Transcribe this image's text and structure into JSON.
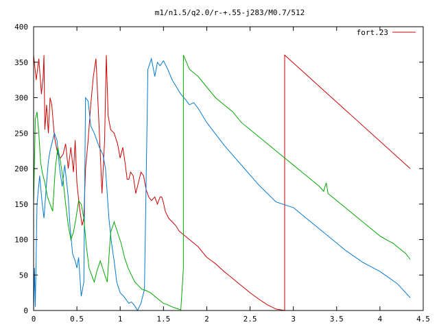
{
  "chart_data": {
    "type": "line",
    "title": "m1/n1.5/q2.0/r-+.55-j283/M0.7/512",
    "xlim": [
      0,
      4.5
    ],
    "ylim": [
      0,
      400
    ],
    "x_ticks": [
      "0",
      "0.5",
      "1",
      "1.5",
      "2",
      "2.5",
      "3",
      "3.5",
      "4",
      "4.5"
    ],
    "y_ticks": [
      "0",
      "50",
      "100",
      "150",
      "200",
      "250",
      "300",
      "350",
      "400"
    ],
    "grid": false,
    "legend": {
      "position": "top-right",
      "label": "fort.23",
      "color": "#cc0000"
    },
    "series": [
      {
        "name": "fort.23",
        "color": "#cc0000",
        "x": [
          0.0,
          0.03,
          0.06,
          0.09,
          0.11,
          0.12,
          0.13,
          0.15,
          0.17,
          0.19,
          0.21,
          0.24,
          0.28,
          0.31,
          0.34,
          0.37,
          0.4,
          0.43,
          0.46,
          0.48,
          0.5,
          0.53,
          0.56,
          0.58,
          0.6,
          0.63,
          0.66,
          0.69,
          0.72,
          0.76,
          0.79,
          0.82,
          0.84,
          0.86,
          0.89,
          0.93,
          0.97,
          1.0,
          1.03,
          1.06,
          1.08,
          1.1,
          1.12,
          1.15,
          1.18,
          1.21,
          1.24,
          1.27,
          1.3,
          1.33,
          1.36,
          1.4,
          1.43,
          1.46,
          1.48,
          1.5,
          1.52,
          1.54,
          1.56,
          1.6,
          1.64,
          1.68,
          1.72,
          1.76,
          1.8,
          1.9,
          2.0,
          2.1,
          2.2,
          2.3,
          2.4,
          2.5,
          2.6,
          2.7,
          2.8,
          2.9,
          2.9,
          4.35
        ],
        "y": [
          360,
          325,
          355,
          305,
          330,
          360,
          255,
          290,
          250,
          300,
          290,
          245,
          220,
          215,
          220,
          235,
          200,
          230,
          195,
          240,
          180,
          145,
          120,
          130,
          200,
          240,
          290,
          330,
          355,
          250,
          165,
          240,
          360,
          275,
          255,
          250,
          235,
          215,
          230,
          205,
          185,
          185,
          195,
          190,
          165,
          180,
          195,
          190,
          170,
          160,
          155,
          160,
          150,
          160,
          160,
          152,
          140,
          135,
          130,
          125,
          120,
          112,
          108,
          104,
          100,
          90,
          75,
          66,
          55,
          45,
          35,
          25,
          16,
          8,
          2,
          0,
          360,
          200
        ]
      },
      {
        "name": "",
        "color": "#0078d0",
        "x": [
          0.0,
          0.01,
          0.02,
          0.04,
          0.07,
          0.1,
          0.12,
          0.15,
          0.17,
          0.19,
          0.21,
          0.24,
          0.27,
          0.3,
          0.33,
          0.36,
          0.4,
          0.42,
          0.45,
          0.48,
          0.5,
          0.52,
          0.55,
          0.58,
          0.6,
          0.63,
          0.66,
          0.7,
          0.73,
          0.76,
          0.8,
          0.83,
          0.87,
          0.9,
          0.93,
          0.96,
          1.0,
          1.04,
          1.07,
          1.1,
          1.13,
          1.16,
          1.2,
          1.24,
          1.28,
          1.32,
          1.36,
          1.4,
          1.43,
          1.46,
          1.5,
          1.55,
          1.6,
          1.65,
          1.7,
          1.75,
          1.8,
          1.85,
          1.9,
          2.0,
          2.2,
          2.4,
          2.6,
          2.8,
          3.0,
          3.2,
          3.4,
          3.6,
          3.8,
          4.0,
          4.2,
          4.35
        ],
        "y": [
          0,
          60,
          5,
          150,
          190,
          150,
          130,
          180,
          210,
          225,
          235,
          250,
          240,
          200,
          175,
          205,
          160,
          120,
          80,
          70,
          60,
          75,
          20,
          40,
          300,
          295,
          260,
          250,
          240,
          230,
          220,
          200,
          130,
          95,
          70,
          40,
          25,
          20,
          15,
          10,
          12,
          8,
          0,
          10,
          30,
          340,
          355,
          330,
          350,
          345,
          352,
          340,
          325,
          315,
          305,
          298,
          290,
          293,
          285,
          265,
          233,
          205,
          177,
          153,
          145,
          125,
          105,
          85,
          68,
          55,
          38,
          18
        ]
      },
      {
        "name": "",
        "color": "#00a800",
        "x": [
          0.0,
          0.02,
          0.04,
          0.06,
          0.08,
          0.1,
          0.13,
          0.16,
          0.19,
          0.22,
          0.25,
          0.28,
          0.31,
          0.34,
          0.37,
          0.4,
          0.43,
          0.46,
          0.49,
          0.52,
          0.55,
          0.58,
          0.61,
          0.64,
          0.67,
          0.7,
          0.73,
          0.77,
          0.81,
          0.85,
          0.89,
          0.93,
          0.97,
          1.01,
          1.05,
          1.09,
          1.13,
          1.17,
          1.21,
          1.25,
          1.3,
          1.35,
          1.4,
          1.45,
          1.5,
          1.55,
          1.6,
          1.65,
          1.7,
          1.73,
          1.73,
          1.8,
          1.9,
          2.0,
          2.1,
          2.2,
          2.3,
          2.4,
          2.5,
          2.6,
          2.7,
          2.8,
          2.9,
          3.0,
          3.1,
          3.2,
          3.3,
          3.35,
          3.38,
          3.4,
          3.5,
          3.6,
          3.7,
          3.8,
          3.9,
          4.0,
          4.1,
          4.15,
          4.2,
          4.3,
          4.35
        ],
        "y": [
          150,
          270,
          280,
          250,
          210,
          195,
          180,
          160,
          150,
          140,
          200,
          230,
          210,
          185,
          150,
          120,
          100,
          110,
          130,
          155,
          150,
          130,
          90,
          60,
          50,
          40,
          55,
          70,
          55,
          40,
          110,
          125,
          110,
          95,
          75,
          60,
          50,
          40,
          35,
          30,
          28,
          25,
          20,
          15,
          10,
          8,
          5,
          3,
          1,
          60,
          360,
          340,
          330,
          315,
          300,
          290,
          280,
          265,
          255,
          245,
          235,
          225,
          215,
          205,
          195,
          185,
          175,
          168,
          180,
          165,
          155,
          145,
          135,
          125,
          115,
          105,
          98,
          95,
          90,
          80,
          72
        ]
      }
    ]
  }
}
